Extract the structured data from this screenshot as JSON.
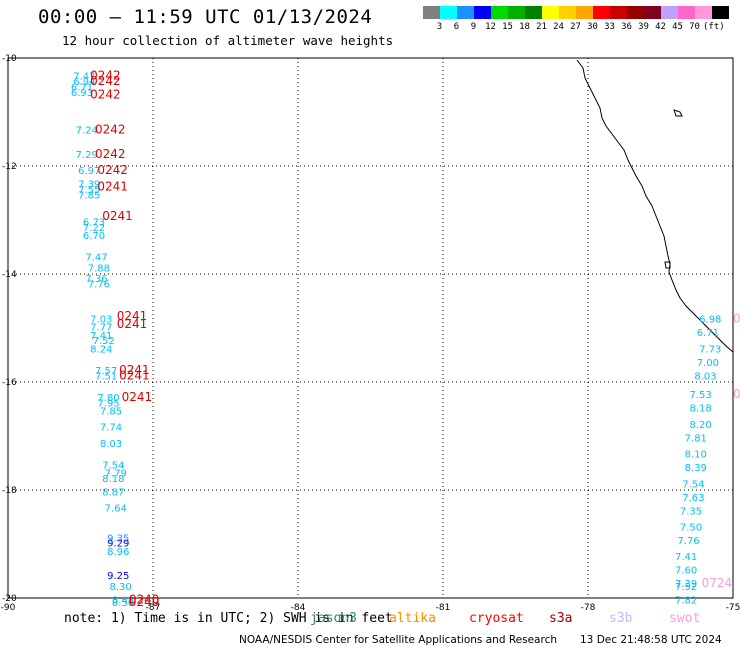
{
  "header": {
    "title": "00:00 – 11:59 UTC 01/13/2024",
    "subtitle": "12 hour collection of altimeter wave heights"
  },
  "colorbar": {
    "colors": [
      "#808080",
      "#00ffff",
      "#1e90ff",
      "#0000ff",
      "#00d800",
      "#00b000",
      "#008000",
      "#ffff00",
      "#ffd000",
      "#ffa500",
      "#ff0000",
      "#c80000",
      "#960000",
      "#800020",
      "#c0a0ff",
      "#ff66cc",
      "#ff99dd",
      "#000000"
    ],
    "labels": [
      "3",
      "6",
      "9",
      "12",
      "15",
      "18",
      "21",
      "24",
      "27",
      "30",
      "33",
      "36",
      "39",
      "42",
      "45",
      "70",
      "(ft)"
    ]
  },
  "axes": {
    "x_ticks": [
      "-90",
      "-87",
      "-84",
      "-81",
      "-78",
      "-75"
    ],
    "y_ticks": [
      "-10",
      "-12",
      "-14",
      "-16",
      "-18",
      "-20"
    ],
    "x_range": [
      -90,
      -75
    ],
    "y_range": [
      -20,
      -10
    ]
  },
  "map_data": {
    "left_track_values": [
      {
        "lon": -88.65,
        "lat": -10.4,
        "text": "7.47",
        "color": "#00bfff"
      },
      {
        "lon": -88.65,
        "lat": -10.5,
        "text": "6.94",
        "color": "#00bfff"
      },
      {
        "lon": -88.7,
        "lat": -10.6,
        "text": "6.71",
        "color": "#00bfff"
      },
      {
        "lon": -88.7,
        "lat": -10.7,
        "text": "6.93",
        "color": "#00bfff"
      },
      {
        "lon": -88.6,
        "lat": -11.4,
        "text": "7.24",
        "color": "#00bfff"
      },
      {
        "lon": -88.6,
        "lat": -11.85,
        "text": "7.29",
        "color": "#00bfff"
      },
      {
        "lon": -88.55,
        "lat": -12.15,
        "text": "6.97",
        "color": "#00bfff"
      },
      {
        "lon": -88.55,
        "lat": -12.4,
        "text": "7.39",
        "color": "#00bfff"
      },
      {
        "lon": -88.55,
        "lat": -12.5,
        "text": "7.55",
        "color": "#00bfff"
      },
      {
        "lon": -88.55,
        "lat": -12.6,
        "text": "7.85",
        "color": "#00bfff"
      },
      {
        "lon": -88.45,
        "lat": -13.1,
        "text": "6.73",
        "color": "#00bfff"
      },
      {
        "lon": -88.45,
        "lat": -13.2,
        "text": "7.22",
        "color": "#00bfff"
      },
      {
        "lon": -88.45,
        "lat": -13.35,
        "text": "6.70",
        "color": "#00bfff"
      },
      {
        "lon": -88.4,
        "lat": -13.75,
        "text": "7.47",
        "color": "#00bfff"
      },
      {
        "lon": -88.35,
        "lat": -13.95,
        "text": "7.88",
        "color": "#00bfff"
      },
      {
        "lon": -88.4,
        "lat": -14.15,
        "text": "7.36",
        "color": "#00bfff"
      },
      {
        "lon": -88.35,
        "lat": -14.25,
        "text": "7.76",
        "color": "#00bfff"
      },
      {
        "lon": -88.3,
        "lat": -14.9,
        "text": "7.03",
        "color": "#00bfff"
      },
      {
        "lon": -88.3,
        "lat": -15.05,
        "text": "7.77",
        "color": "#00bfff"
      },
      {
        "lon": -88.3,
        "lat": -15.2,
        "text": "7.41",
        "color": "#00bfff"
      },
      {
        "lon": -88.25,
        "lat": -15.3,
        "text": "7.52",
        "color": "#00bfff"
      },
      {
        "lon": -88.3,
        "lat": -15.45,
        "text": "8.24",
        "color": "#00bfff"
      },
      {
        "lon": -88.2,
        "lat": -15.85,
        "text": "7.57",
        "color": "#00bfff"
      },
      {
        "lon": -88.2,
        "lat": -15.95,
        "text": "7.51",
        "color": "#00bfff"
      },
      {
        "lon": -88.15,
        "lat": -16.35,
        "text": "7.80",
        "color": "#00bfff"
      },
      {
        "lon": -88.15,
        "lat": -16.45,
        "text": "7.95",
        "color": "#00bfff"
      },
      {
        "lon": -88.1,
        "lat": -16.6,
        "text": "7.85",
        "color": "#00bfff"
      },
      {
        "lon": -88.1,
        "lat": -16.9,
        "text": "7.74",
        "color": "#00bfff"
      },
      {
        "lon": -88.1,
        "lat": -17.2,
        "text": "8.03",
        "color": "#00bfff"
      },
      {
        "lon": -88.05,
        "lat": -17.6,
        "text": "7.54",
        "color": "#00bfff"
      },
      {
        "lon": -88.0,
        "lat": -17.75,
        "text": "7.79",
        "color": "#00bfff"
      },
      {
        "lon": -88.05,
        "lat": -17.85,
        "text": "8.18",
        "color": "#00bfff"
      },
      {
        "lon": -88.05,
        "lat": -18.1,
        "text": "8.87",
        "color": "#00bfff"
      },
      {
        "lon": -88.0,
        "lat": -18.4,
        "text": "7.64",
        "color": "#00bfff"
      },
      {
        "lon": -87.95,
        "lat": -18.95,
        "text": "9.35",
        "color": "#1e90ff"
      },
      {
        "lon": -87.95,
        "lat": -19.05,
        "text": "9.29",
        "color": "#0000ff"
      },
      {
        "lon": -87.95,
        "lat": -19.2,
        "text": "8.96",
        "color": "#00bfff"
      },
      {
        "lon": -87.95,
        "lat": -19.65,
        "text": "9.25",
        "color": "#0000ff"
      },
      {
        "lon": -87.9,
        "lat": -19.85,
        "text": "8.30",
        "color": "#00bfff"
      },
      {
        "lon": -87.85,
        "lat": -20.1,
        "text": "8.48",
        "color": "#00bfff"
      },
      {
        "lon": -87.85,
        "lat": -20.15,
        "text": "8.56",
        "color": "#00bfff"
      },
      {
        "lon": -87.8,
        "lat": -20.75,
        "text": "7.94",
        "color": "#00bfff"
      },
      {
        "lon": -87.8,
        "lat": -20.85,
        "text": "7.91",
        "color": "#00bfff"
      }
    ],
    "left_time_labels": [
      {
        "lon": -88.3,
        "lat": -10.4,
        "text": "0242"
      },
      {
        "lon": -88.3,
        "lat": -10.5,
        "text": "0242"
      },
      {
        "lon": -88.3,
        "lat": -10.75,
        "text": "0242"
      },
      {
        "lon": -88.2,
        "lat": -11.4,
        "text": "0242"
      },
      {
        "lon": -88.2,
        "lat": -11.85,
        "text": "0242"
      },
      {
        "lon": -88.15,
        "lat": -12.15,
        "text": "0242"
      },
      {
        "lon": -88.15,
        "lat": -12.45,
        "text": "0241"
      },
      {
        "lon": -88.05,
        "lat": -13.0,
        "text": "0241"
      },
      {
        "lon": -87.75,
        "lat": -14.85,
        "text": "0241"
      },
      {
        "lon": -87.75,
        "lat": -15.0,
        "text": "0241"
      },
      {
        "lon": -87.7,
        "lat": -15.85,
        "text": "0241"
      },
      {
        "lon": -87.7,
        "lat": -15.95,
        "text": "0241"
      },
      {
        "lon": -87.65,
        "lat": -16.35,
        "text": "0241"
      },
      {
        "lon": -87.5,
        "lat": -20.1,
        "text": "0240"
      },
      {
        "lon": -87.5,
        "lat": -20.15,
        "text": "0240"
      },
      {
        "lon": -87.5,
        "lat": -20.75,
        "text": "0239"
      },
      {
        "lon": -87.5,
        "lat": -20.85,
        "text": "0239"
      }
    ],
    "right_track_values": [
      {
        "lon": -75.7,
        "lat": -14.9,
        "text": "6.98",
        "color": "#00bfff"
      },
      {
        "lon": -75.75,
        "lat": -15.15,
        "text": "6.71",
        "color": "#00bfff"
      },
      {
        "lon": -75.7,
        "lat": -15.45,
        "text": "7.73",
        "color": "#00bfff"
      },
      {
        "lon": -75.75,
        "lat": -15.7,
        "text": "7.00",
        "color": "#00bfff"
      },
      {
        "lon": -75.8,
        "lat": -15.95,
        "text": "8.03",
        "color": "#00bfff"
      },
      {
        "lon": -75.9,
        "lat": -16.3,
        "text": "7.53",
        "color": "#00bfff"
      },
      {
        "lon": -75.9,
        "lat": -16.55,
        "text": "8.18",
        "color": "#00bfff"
      },
      {
        "lon": -75.9,
        "lat": -16.85,
        "text": "8.20",
        "color": "#00bfff"
      },
      {
        "lon": -76.0,
        "lat": -17.1,
        "text": "7.81",
        "color": "#00bfff"
      },
      {
        "lon": -76.0,
        "lat": -17.4,
        "text": "8.10",
        "color": "#00bfff"
      },
      {
        "lon": -76.0,
        "lat": -17.65,
        "text": "8.39",
        "color": "#00bfff"
      },
      {
        "lon": -76.05,
        "lat": -17.95,
        "text": "7.54",
        "color": "#00bfff"
      },
      {
        "lon": -76.05,
        "lat": -18.2,
        "text": "7.63",
        "color": "#00bfff"
      },
      {
        "lon": -76.1,
        "lat": -18.45,
        "text": "7.35",
        "color": "#00bfff"
      },
      {
        "lon": -76.1,
        "lat": -18.75,
        "text": "7.50",
        "color": "#00bfff"
      },
      {
        "lon": -76.15,
        "lat": -19.0,
        "text": "7.76",
        "color": "#00bfff"
      },
      {
        "lon": -76.2,
        "lat": -19.3,
        "text": "7.41",
        "color": "#00bfff"
      },
      {
        "lon": -76.2,
        "lat": -19.55,
        "text": "7.60",
        "color": "#00bfff"
      },
      {
        "lon": -76.2,
        "lat": -19.8,
        "text": "7.39",
        "color": "#00bfff"
      },
      {
        "lon": -76.2,
        "lat": -19.85,
        "text": "7.52",
        "color": "#00bfff"
      },
      {
        "lon": -76.2,
        "lat": -20.1,
        "text": "7.82",
        "color": "#00bfff"
      },
      {
        "lon": -76.25,
        "lat": -20.4,
        "text": "7.77",
        "color": "#00bfff"
      }
    ],
    "right_time_labels": [
      {
        "lon": -75.0,
        "lat": -14.9,
        "text": "07"
      },
      {
        "lon": -75.0,
        "lat": -16.3,
        "text": "07"
      },
      {
        "lon": -75.65,
        "lat": -19.8,
        "text": "0724"
      }
    ]
  },
  "legend_note": {
    "prefix": "note: 1) Time is in UTC; 2) SWH is in feet",
    "satellites": [
      {
        "name": "jason3",
        "color": "#2e8b57"
      },
      {
        "name": "altika",
        "color": "#ff8c00"
      },
      {
        "name": "cryosat",
        "color": "#ff0000"
      },
      {
        "name": "s3a",
        "color": "#a00000"
      },
      {
        "name": "s3b",
        "color": "#c8b4ff"
      },
      {
        "name": "swot",
        "color": "#ff99dd"
      }
    ]
  },
  "footer": {
    "credit": "NOAA/NESDIS Center for Satellite Applications and Research",
    "timestamp": "13 Dec 21:48:58 UTC 2024"
  }
}
